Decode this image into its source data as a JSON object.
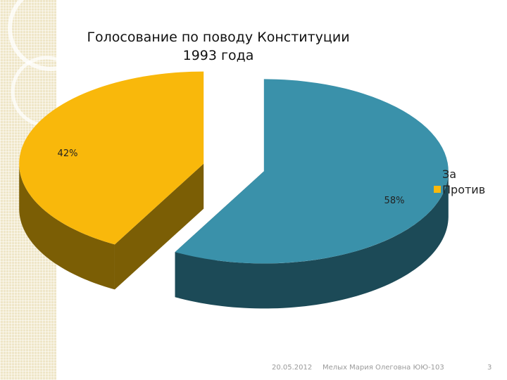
{
  "chart_data": {
    "type": "pie",
    "title": "Голосование по поводу Конституции 1993 года",
    "style": "3d-exploded",
    "categories": [
      "За",
      "Против"
    ],
    "values": [
      58,
      42
    ],
    "value_labels": [
      "58%",
      "42%"
    ],
    "colors": {
      "За": {
        "top": "#3a91aa",
        "side": "#1c4a57"
      },
      "Против": {
        "top": "#f9b80b",
        "side": "#7b5e05"
      }
    },
    "legend_position": "right"
  },
  "footer": {
    "date": "20.05.2012",
    "author": "Мелых Мария Олеговна ЮЮ-103",
    "page": "3"
  }
}
